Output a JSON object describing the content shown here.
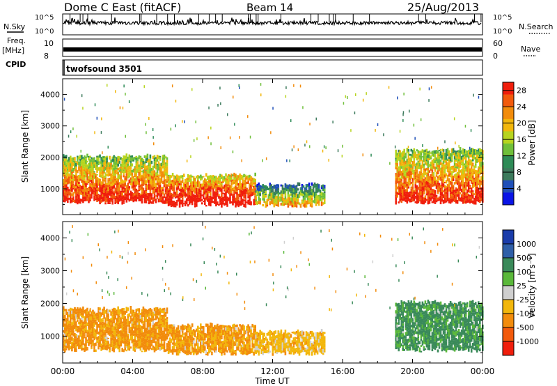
{
  "header": {
    "title": "Dome C East (fitACF)",
    "beam": "Beam 14",
    "date": "25/Aug/2013"
  },
  "left_labels": {
    "nsky": "N.Sky",
    "freq": "Freq.",
    "freq_unit": "[MHz]",
    "cpid": "CPID"
  },
  "right_labels": {
    "nsearch": "N.Search",
    "nave": "Nave"
  },
  "strip_ticks": {
    "nsky_top": "10^5",
    "nsky_bottom": "10^0",
    "freq_top": "10",
    "freq_bottom": "8",
    "nave_top": "60",
    "nave_bottom": "0"
  },
  "cpid_text": "twofsound 3501",
  "chart_data": [
    {
      "type": "heatmap",
      "title": "",
      "ylabel": "Slant Range [km]",
      "xlabel": "",
      "xlim": [
        0,
        24
      ],
      "ylim": [
        180,
        4500
      ],
      "x_ticks": [
        "00:00",
        "04:00",
        "08:00",
        "12:00",
        "16:00",
        "20:00",
        "00:00"
      ],
      "y_ticks": [
        1000,
        2000,
        3000,
        4000
      ],
      "colorbar": {
        "label": "Power [dB]",
        "ticks": [
          4,
          8,
          12,
          16,
          20,
          24,
          28
        ],
        "range": [
          0,
          30
        ],
        "colors": [
          "#0a14e6",
          "#1f4fb8",
          "#3c7a5c",
          "#2e8b57",
          "#6fbf3a",
          "#b7d41f",
          "#f2b70c",
          "#f28c0c",
          "#f25a0c",
          "#f01e0c"
        ]
      },
      "echo_bands": [
        {
          "t_start": 0.0,
          "t_end": 6.0,
          "range_low": 500,
          "range_high": 2000,
          "power_db": 22
        },
        {
          "t_start": 6.0,
          "t_end": 11.0,
          "range_low": 400,
          "range_high": 1400,
          "power_db": 26
        },
        {
          "t_start": 11.0,
          "t_end": 15.0,
          "range_low": 400,
          "range_high": 1100,
          "power_db": 14
        },
        {
          "t_start": 19.0,
          "t_end": 24.0,
          "range_low": 500,
          "range_high": 2200,
          "power_db": 22
        }
      ]
    },
    {
      "type": "heatmap",
      "title": "",
      "ylabel": "Slant Range [km]",
      "xlabel": "Time UT",
      "xlim": [
        0,
        24
      ],
      "ylim": [
        180,
        4500
      ],
      "x_ticks": [
        "00:00",
        "04:00",
        "08:00",
        "12:00",
        "16:00",
        "20:00",
        "00:00"
      ],
      "y_ticks": [
        1000,
        2000,
        3000,
        4000
      ],
      "colorbar": {
        "label": "Velocity [m s⁻¹]",
        "ticks": [
          1000,
          500,
          100,
          25,
          -25,
          -100,
          -500,
          -1000
        ],
        "colors": [
          "#1a3caa",
          "#2f5fa8",
          "#3a8a5a",
          "#5ab83a",
          "#cfcfcf",
          "#f2b70c",
          "#f28c0c",
          "#f25a0c",
          "#f01e0c"
        ]
      },
      "echo_bands": [
        {
          "t_start": 0.0,
          "t_end": 6.0,
          "range_low": 500,
          "range_high": 1800,
          "velocity": -150
        },
        {
          "t_start": 6.0,
          "t_end": 11.0,
          "range_low": 400,
          "range_high": 1300,
          "velocity": -120
        },
        {
          "t_start": 11.0,
          "t_end": 15.0,
          "range_low": 400,
          "range_high": 1100,
          "velocity": -60
        },
        {
          "t_start": 19.0,
          "t_end": 24.0,
          "range_low": 500,
          "range_high": 2000,
          "velocity": 150
        }
      ]
    }
  ]
}
